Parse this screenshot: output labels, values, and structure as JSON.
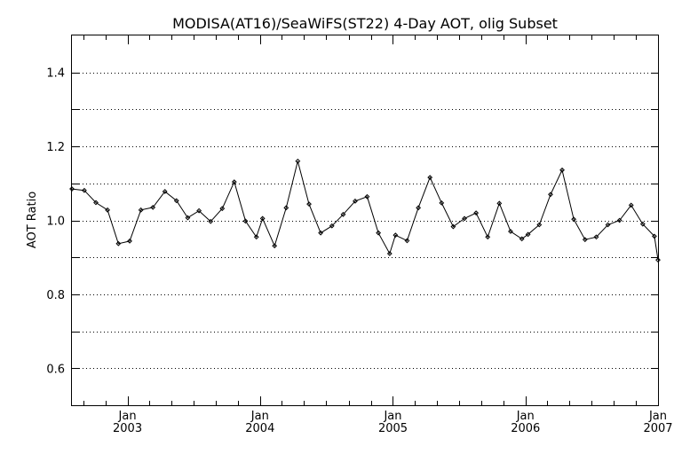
{
  "chart_data": {
    "type": "line",
    "title": "MODISA(AT16)/SeaWiFS(ST22) 4-Day AOT, olig Subset",
    "xlabel": "",
    "ylabel": "AOT Ratio",
    "xlim": [
      "2002-08-01",
      "2007-01-01"
    ],
    "ylim": [
      0.5,
      1.5
    ],
    "grid": "horizontal dotted",
    "y_ticks": [
      "0.6",
      "0.8",
      "1.0",
      "1.2",
      "1.4"
    ],
    "x_ticks": [
      {
        "date": "2003-01-01",
        "month": "Jan",
        "year": "2003"
      },
      {
        "date": "2004-01-01",
        "month": "Jan",
        "year": "2004"
      },
      {
        "date": "2005-01-01",
        "month": "Jan",
        "year": "2005"
      },
      {
        "date": "2006-01-01",
        "month": "Jan",
        "year": "2006"
      },
      {
        "date": "2007-01-01",
        "month": "Jan",
        "year": "2007"
      }
    ],
    "series": [
      {
        "x": [
          "2002-08-01",
          "2002-09-04",
          "2002-10-06",
          "2002-11-07",
          "2002-12-07",
          "2003-01-07",
          "2003-02-07",
          "2003-03-12",
          "2003-04-14",
          "2003-05-16",
          "2003-06-16",
          "2003-07-17",
          "2003-08-18",
          "2003-09-19",
          "2003-10-22",
          "2003-11-22",
          "2003-12-22",
          "2004-01-08",
          "2004-02-10",
          "2004-03-13",
          "2004-04-14",
          "2004-05-15",
          "2004-06-16",
          "2004-07-17",
          "2004-08-17",
          "2004-09-19",
          "2004-10-22",
          "2004-11-22",
          "2004-12-23",
          "2005-01-08",
          "2005-02-09",
          "2005-03-12",
          "2005-04-13",
          "2005-05-15",
          "2005-06-16",
          "2005-07-17",
          "2005-08-18",
          "2005-09-19",
          "2005-10-21",
          "2005-11-21",
          "2005-12-22",
          "2006-01-08",
          "2006-02-08",
          "2006-03-11",
          "2006-04-12",
          "2006-05-14",
          "2006-06-14",
          "2006-07-15",
          "2006-08-16",
          "2006-09-17",
          "2006-10-19",
          "2006-11-20",
          "2006-12-22",
          "2007-01-01"
        ],
        "y": [
          1.085,
          1.081,
          1.048,
          1.028,
          0.937,
          0.944,
          1.028,
          1.035,
          1.078,
          1.053,
          1.007,
          1.026,
          0.997,
          1.032,
          1.104,
          0.998,
          0.955,
          1.005,
          0.931,
          1.034,
          1.16,
          1.044,
          0.966,
          0.985,
          1.016,
          1.052,
          1.064,
          0.966,
          0.91,
          0.96,
          0.945,
          1.034,
          1.116,
          1.047,
          0.983,
          1.005,
          1.02,
          0.955,
          1.046,
          0.97,
          0.95,
          0.962,
          0.988,
          1.07,
          1.136,
          1.003,
          0.948,
          0.955,
          0.988,
          1.0,
          1.041,
          0.99,
          0.957,
          0.893
        ]
      }
    ]
  }
}
